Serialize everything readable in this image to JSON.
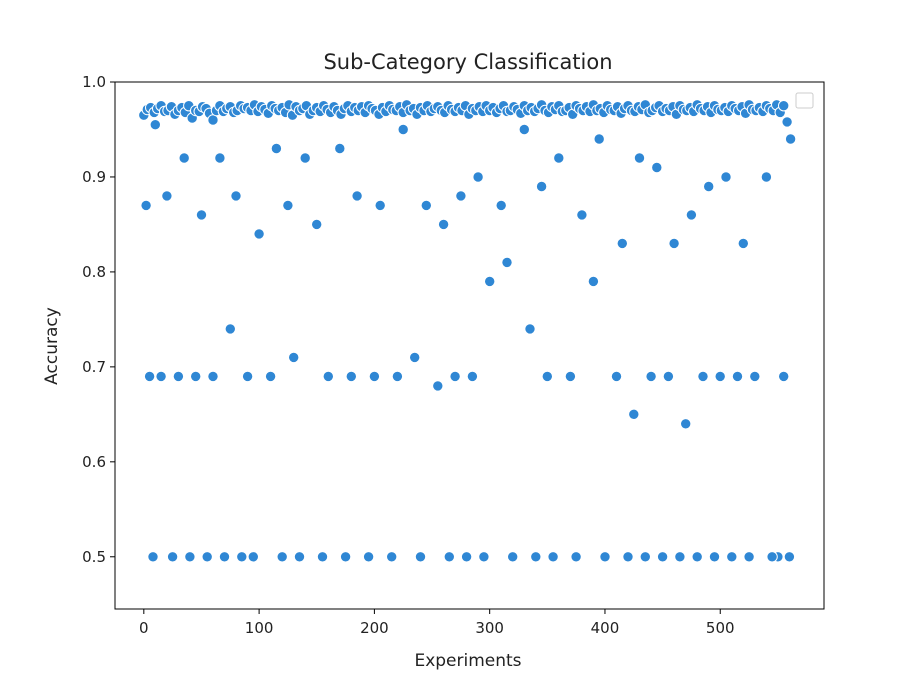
{
  "chart_data": {
    "type": "scatter",
    "title": "Sub-Category Classification",
    "xlabel": "Experiments",
    "ylabel": "Accuracy",
    "xlim": [
      -25,
      590
    ],
    "ylim": [
      0.445,
      1.0
    ],
    "xticks": [
      0,
      100,
      200,
      300,
      400,
      500
    ],
    "yticks": [
      0.5,
      0.6,
      0.7,
      0.8,
      0.9,
      1.0
    ],
    "ytick_labels": [
      "0.5",
      "0.6",
      "0.7",
      "0.8",
      "0.9",
      "1.0"
    ],
    "grid": false,
    "legend": "top-right (empty box)",
    "color": "#2f87d4",
    "x": [
      0,
      3,
      6,
      9,
      12,
      15,
      18,
      21,
      24,
      27,
      30,
      33,
      36,
      39,
      42,
      45,
      48,
      51,
      54,
      57,
      60,
      63,
      66,
      69,
      72,
      75,
      78,
      81,
      84,
      87,
      90,
      93,
      96,
      99,
      102,
      105,
      108,
      111,
      114,
      117,
      120,
      123,
      126,
      129,
      132,
      135,
      138,
      141,
      144,
      147,
      150,
      153,
      156,
      159,
      162,
      165,
      168,
      171,
      174,
      177,
      180,
      183,
      186,
      189,
      192,
      195,
      198,
      201,
      204,
      207,
      210,
      213,
      216,
      219,
      222,
      225,
      228,
      231,
      234,
      237,
      240,
      243,
      246,
      249,
      252,
      255,
      258,
      261,
      264,
      267,
      270,
      273,
      276,
      279,
      282,
      285,
      288,
      291,
      294,
      297,
      300,
      303,
      306,
      309,
      312,
      315,
      318,
      321,
      324,
      327,
      330,
      333,
      336,
      339,
      342,
      345,
      348,
      351,
      354,
      357,
      360,
      363,
      366,
      369,
      372,
      375,
      378,
      381,
      384,
      387,
      390,
      393,
      396,
      399,
      402,
      405,
      408,
      411,
      414,
      417,
      420,
      423,
      426,
      429,
      432,
      435,
      438,
      441,
      444,
      447,
      450,
      453,
      456,
      459,
      462,
      465,
      468,
      471,
      474,
      477,
      480,
      483,
      486,
      489,
      492,
      495,
      498,
      501,
      504,
      507,
      510,
      513,
      516,
      519,
      522,
      525,
      528,
      531,
      534,
      537,
      540,
      543,
      546,
      549,
      552,
      555,
      558,
      561,
      2,
      10,
      20,
      35,
      50,
      66,
      80,
      100,
      115,
      125,
      140,
      150,
      170,
      185,
      205,
      225,
      245,
      260,
      275,
      290,
      310,
      330,
      345,
      360,
      380,
      395,
      415,
      430,
      445,
      460,
      475,
      490,
      505,
      520,
      540,
      555,
      5,
      15,
      30,
      45,
      60,
      75,
      90,
      110,
      130,
      160,
      180,
      200,
      220,
      235,
      255,
      270,
      285,
      300,
      315,
      335,
      350,
      370,
      390,
      410,
      425,
      440,
      455,
      470,
      485,
      500,
      515,
      530,
      550,
      8,
      25,
      40,
      55,
      70,
      85,
      95,
      120,
      135,
      155,
      175,
      195,
      215,
      240,
      265,
      280,
      295,
      320,
      340,
      355,
      375,
      400,
      420,
      435,
      450,
      465,
      480,
      495,
      510,
      525,
      545,
      560
    ],
    "y": [
      0.965,
      0.971,
      0.973,
      0.968,
      0.972,
      0.975,
      0.969,
      0.97,
      0.974,
      0.966,
      0.97,
      0.973,
      0.968,
      0.975,
      0.962,
      0.97,
      0.969,
      0.974,
      0.972,
      0.967,
      0.96,
      0.97,
      0.975,
      0.969,
      0.972,
      0.974,
      0.968,
      0.97,
      0.975,
      0.972,
      0.973,
      0.97,
      0.976,
      0.969,
      0.974,
      0.971,
      0.967,
      0.975,
      0.972,
      0.97,
      0.973,
      0.968,
      0.976,
      0.965,
      0.974,
      0.97,
      0.972,
      0.975,
      0.966,
      0.97,
      0.973,
      0.969,
      0.975,
      0.971,
      0.968,
      0.974,
      0.97,
      0.966,
      0.972,
      0.975,
      0.969,
      0.973,
      0.97,
      0.974,
      0.968,
      0.975,
      0.972,
      0.97,
      0.966,
      0.973,
      0.969,
      0.975,
      0.971,
      0.97,
      0.974,
      0.968,
      0.976,
      0.97,
      0.972,
      0.966,
      0.973,
      0.97,
      0.975,
      0.969,
      0.972,
      0.974,
      0.97,
      0.968,
      0.975,
      0.971,
      0.969,
      0.973,
      0.97,
      0.975,
      0.966,
      0.972,
      0.97,
      0.974,
      0.969,
      0.975,
      0.97,
      0.973,
      0.968,
      0.972,
      0.975,
      0.969,
      0.97,
      0.974,
      0.971,
      0.967,
      0.975,
      0.97,
      0.973,
      0.969,
      0.972,
      0.976,
      0.97,
      0.968,
      0.974,
      0.971,
      0.975,
      0.969,
      0.97,
      0.973,
      0.966,
      0.975,
      0.972,
      0.97,
      0.974,
      0.969,
      0.976,
      0.97,
      0.972,
      0.968,
      0.975,
      0.971,
      0.97,
      0.974,
      0.967,
      0.972,
      0.975,
      0.97,
      0.969,
      0.974,
      0.971,
      0.976,
      0.968,
      0.97,
      0.973,
      0.975,
      0.969,
      0.972,
      0.97,
      0.974,
      0.966,
      0.975,
      0.971,
      0.97,
      0.973,
      0.969,
      0.976,
      0.972,
      0.97,
      0.974,
      0.968,
      0.975,
      0.971,
      0.97,
      0.973,
      0.969,
      0.975,
      0.972,
      0.97,
      0.974,
      0.967,
      0.976,
      0.971,
      0.97,
      0.973,
      0.969,
      0.975,
      0.972,
      0.97,
      0.976,
      0.968,
      0.975,
      0.958,
      0.94,
      0.87,
      0.955,
      0.88,
      0.92,
      0.86,
      0.92,
      0.88,
      0.84,
      0.93,
      0.87,
      0.92,
      0.85,
      0.93,
      0.88,
      0.87,
      0.95,
      0.87,
      0.85,
      0.88,
      0.9,
      0.87,
      0.95,
      0.89,
      0.92,
      0.86,
      0.94,
      0.83,
      0.92,
      0.91,
      0.83,
      0.86,
      0.89,
      0.9,
      0.83,
      0.9,
      0.69,
      0.69,
      0.69,
      0.69,
      0.69,
      0.69,
      0.74,
      0.69,
      0.69,
      0.71,
      0.69,
      0.69,
      0.69,
      0.69,
      0.71,
      0.68,
      0.69,
      0.69,
      0.79,
      0.81,
      0.74,
      0.69,
      0.69,
      0.79,
      0.69,
      0.65,
      0.69,
      0.69,
      0.64,
      0.69,
      0.69,
      0.69,
      0.69,
      0.5,
      0.5,
      0.5,
      0.5,
      0.5,
      0.5,
      0.5,
      0.5,
      0.5,
      0.5,
      0.5,
      0.5,
      0.5,
      0.5,
      0.5,
      0.5,
      0.5,
      0.5,
      0.5,
      0.5,
      0.5,
      0.5,
      0.5,
      0.5,
      0.5,
      0.5,
      0.5,
      0.5,
      0.5,
      0.5,
      0.5,
      0.5,
      0.5
    ]
  }
}
